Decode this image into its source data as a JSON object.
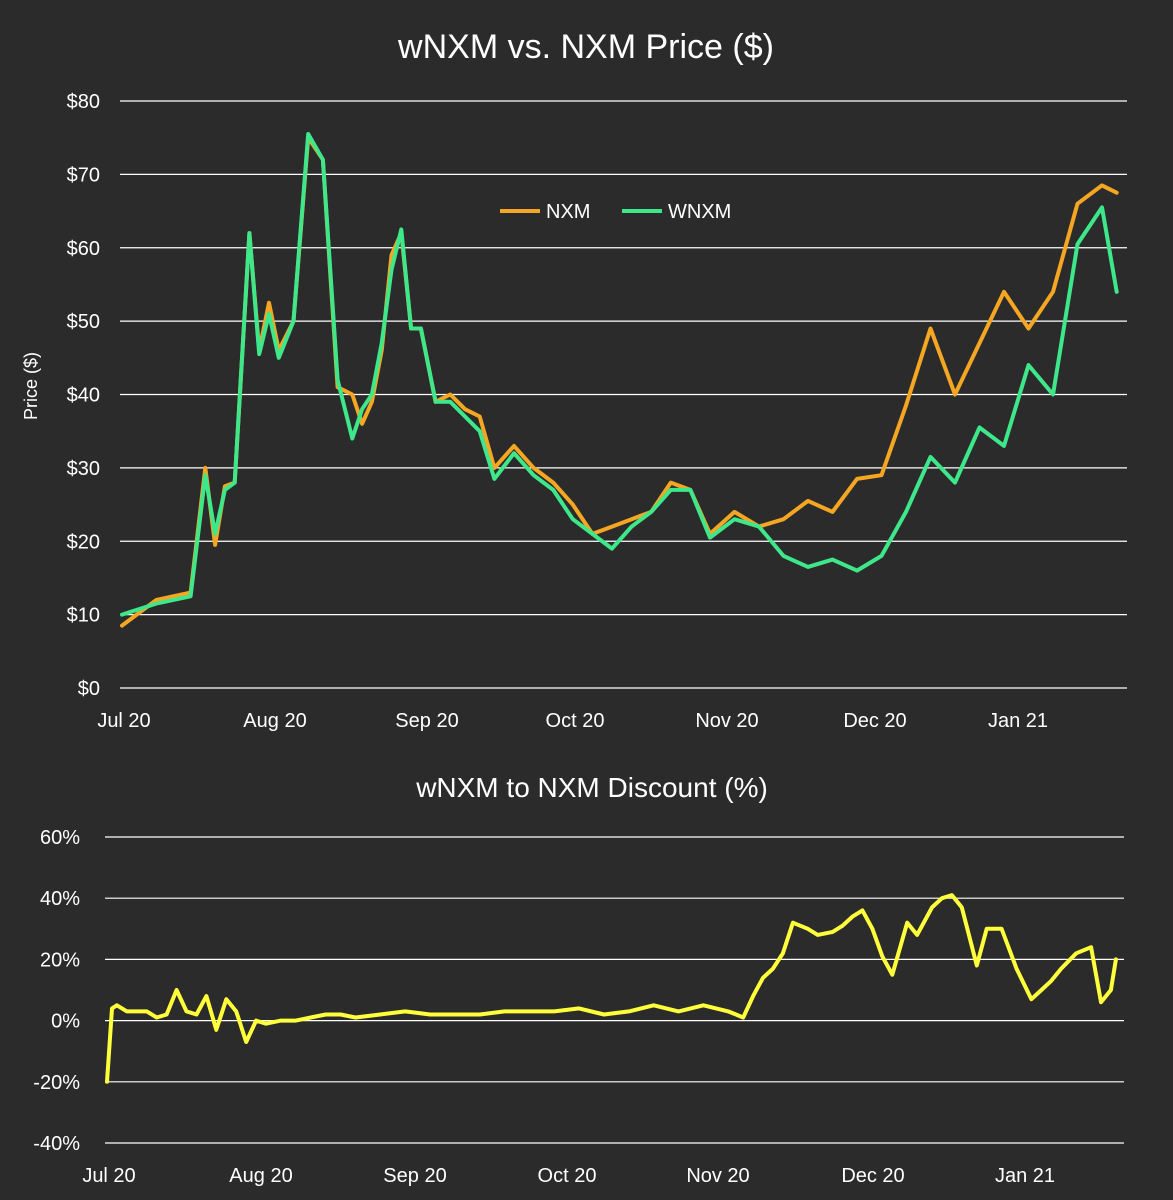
{
  "chart_data": [
    {
      "type": "line",
      "title": "wNXM vs. NXM Price ($)",
      "xlabel": "",
      "ylabel": "Price ($)",
      "ylim": [
        0,
        80
      ],
      "y_ticks": [
        "$0",
        "$10",
        "$20",
        "$30",
        "$40",
        "$50",
        "$60",
        "$70",
        "$80"
      ],
      "x_ticks": [
        "Jul 20",
        "Aug 20",
        "Sep 20",
        "Oct 20",
        "Nov 20",
        "Dec 20",
        "Jan 21"
      ],
      "grid": true,
      "legend_position": "top-center",
      "x": [
        0,
        7,
        14,
        17,
        19,
        21,
        23,
        26,
        28,
        30,
        32,
        35,
        38,
        41,
        44,
        47,
        49,
        51,
        53,
        55,
        57,
        59,
        61,
        64,
        67,
        70,
        73,
        76,
        80,
        84,
        88,
        92,
        96,
        100,
        104,
        108,
        112,
        116,
        120,
        125,
        130,
        135,
        140,
        145,
        150,
        155,
        160,
        165,
        170,
        175,
        180,
        185,
        190,
        195,
        200,
        203
      ],
      "series": [
        {
          "name": "NXM",
          "color": "#f5a623",
          "values": [
            8.5,
            12,
            13,
            30,
            19.5,
            27.5,
            28,
            62,
            46,
            52.5,
            46,
            50,
            75,
            72,
            41,
            40,
            36,
            39,
            46,
            59,
            62,
            49,
            49,
            39,
            40,
            38,
            37,
            30,
            33,
            30,
            28,
            25,
            21,
            22,
            23,
            24,
            28,
            27,
            21,
            24,
            22,
            23,
            25.5,
            24,
            28.5,
            29,
            38.5,
            49,
            40,
            47,
            54,
            49,
            54,
            66,
            68.5,
            67.5
          ]
        },
        {
          "name": "WNXM",
          "color": "#3ee88a",
          "values": [
            10,
            11.5,
            12.5,
            29,
            21,
            27,
            28,
            62,
            45.5,
            51,
            45,
            50,
            75.5,
            72,
            42,
            34,
            38,
            40,
            47,
            57,
            62.5,
            49,
            49,
            39,
            39,
            37,
            35,
            28.5,
            32,
            29,
            27,
            23,
            21,
            19,
            22,
            24,
            27,
            27,
            20.5,
            23,
            22,
            18,
            16.5,
            17.5,
            16,
            18,
            24,
            31.5,
            28,
            35.5,
            33,
            44,
            40,
            60.5,
            65.5,
            54
          ]
        }
      ]
    },
    {
      "type": "line",
      "title": "wNXM to NXM Discount (%)",
      "xlabel": "",
      "ylabel": "",
      "ylim": [
        -40,
        60
      ],
      "y_ticks": [
        "60%",
        "40%",
        "20%",
        "0%",
        "-20%",
        "-40%"
      ],
      "x_ticks": [
        "Jul 20",
        "Aug 20",
        "Sep 20",
        "Oct 20",
        "Nov 20",
        "Dec 20",
        "Jan 21"
      ],
      "grid": true,
      "x": [
        0,
        1,
        2,
        4,
        6,
        8,
        10,
        12,
        14,
        16,
        18,
        20,
        22,
        24,
        26,
        28,
        30,
        32,
        35,
        38,
        41,
        44,
        47,
        50,
        55,
        60,
        65,
        70,
        75,
        80,
        85,
        90,
        95,
        100,
        105,
        110,
        115,
        120,
        125,
        128,
        130,
        132,
        134,
        136,
        138,
        141,
        143,
        146,
        148,
        150,
        152,
        154,
        156,
        158,
        161,
        163,
        166,
        168,
        170,
        172,
        175,
        177,
        180,
        183,
        186,
        188,
        190,
        192,
        195,
        198,
        200,
        202,
        203
      ],
      "series": [
        {
          "name": "",
          "color": "#ffff3b",
          "values": [
            -20,
            4,
            5,
            3,
            3,
            3,
            1,
            2,
            10,
            3,
            2,
            8,
            -3,
            7,
            3,
            -7,
            0,
            -1,
            0,
            0,
            1,
            2,
            2,
            1,
            2,
            3,
            2,
            2,
            2,
            3,
            3,
            3,
            4,
            2,
            3,
            5,
            3,
            5,
            3,
            1,
            8,
            14,
            17,
            22,
            32,
            30,
            28,
            29,
            31,
            34,
            36,
            30,
            21,
            15,
            32,
            28,
            37,
            40,
            41,
            37,
            18,
            30,
            30,
            17,
            7,
            10,
            13,
            17,
            22,
            24,
            6,
            10,
            20
          ]
        }
      ]
    }
  ]
}
